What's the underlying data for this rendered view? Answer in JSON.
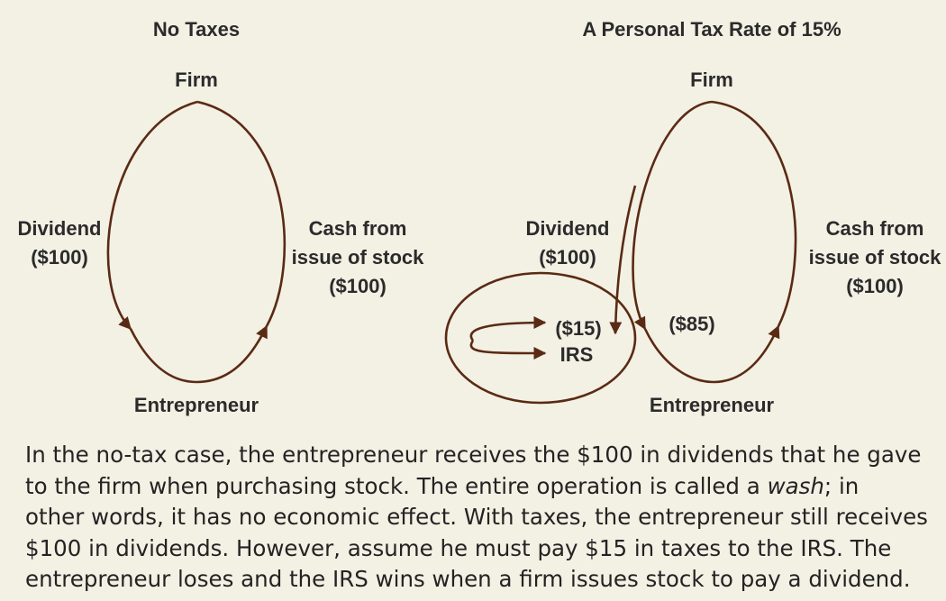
{
  "left_panel": {
    "title": "No Taxes",
    "top_node": "Firm",
    "bottom_node": "Entrepreneur",
    "left_label": [
      "Dividend",
      "($100)"
    ],
    "right_label": [
      "Cash from",
      "issue of stock",
      "($100)"
    ]
  },
  "right_panel": {
    "title": "A Personal Tax Rate of 15%",
    "top_node": "Firm",
    "bottom_node": "Entrepreneur",
    "left_label": [
      "Dividend",
      "($100)"
    ],
    "right_label": [
      "Cash from",
      "issue of stock",
      "($100)"
    ],
    "tax_amount": "($15)",
    "tax_recipient": "IRS",
    "net_amount": "($85)"
  },
  "caption": {
    "lines": [
      "In the no-tax case, the entrepreneur receives the $100 in dividends that he gave",
      "to the firm when purchasing stock. The entire operation is called a ",
      "wash",
      "; in",
      "other words, it has no economic effect. With taxes, the entrepreneur still receives",
      "$100 in dividends. However, assume he must pay $15 in taxes to the IRS. The",
      "entrepreneur loses and the IRS wins when a firm issues stock to pay a dividend."
    ]
  },
  "colors": {
    "background": "#f3f0e4",
    "stroke": "#5a2a14",
    "text": "#2b2b2b"
  }
}
